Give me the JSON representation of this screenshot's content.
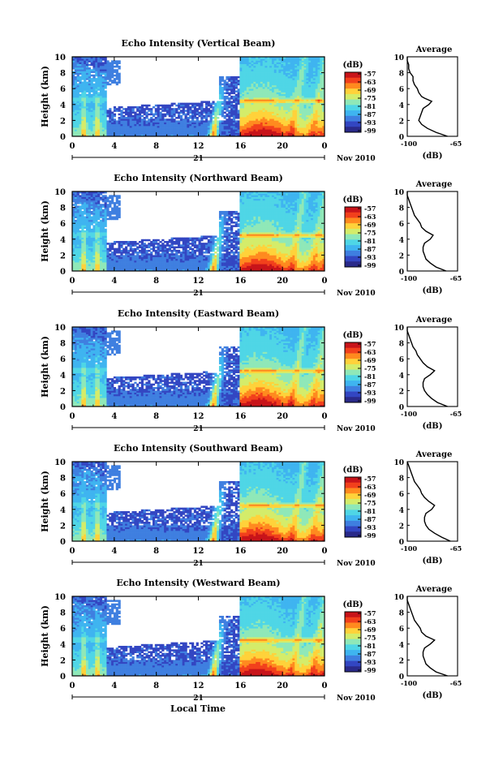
{
  "figure": {
    "date_label": "Nov 2010",
    "day_label": "21",
    "xlabel": "Local Time",
    "ylabel": "Height (km)",
    "avg_title": "Average",
    "avg_xlabel": "(dB)",
    "cb_unit": "(dB)"
  },
  "colors": {
    "scale": [
      "#2a2a8a",
      "#3346c2",
      "#3f7fe0",
      "#3fb4f0",
      "#4fd6e6",
      "#8fe8b8",
      "#d4ec6a",
      "#ffd23a",
      "#ff8a1f",
      "#f2401c",
      "#c8141a"
    ]
  },
  "chart_data": [
    {
      "type": "heatmap",
      "title": "Echo Intensity (Vertical Beam)",
      "x_ticks": [
        "0",
        "4",
        "8",
        "12",
        "16",
        "20",
        "0"
      ],
      "y_ticks": [
        "0",
        "2",
        "4",
        "6",
        "8",
        "10"
      ],
      "xlim": [
        0,
        24
      ],
      "ylim": [
        0,
        10
      ],
      "colorbar_ticks": [
        "-57",
        "-63",
        "-69",
        "-75",
        "-81",
        "-87",
        "-93",
        "-99"
      ],
      "avg_x_ticks": [
        "-100",
        "-65"
      ],
      "avg_y_ticks": [
        "0",
        "2",
        "4",
        "6",
        "8",
        "10"
      ],
      "avg_xlim": [
        -100,
        -65
      ],
      "avg_profile": [
        [
          -72,
          0
        ],
        [
          -80,
          0.5
        ],
        [
          -86,
          1
        ],
        [
          -90,
          1.5
        ],
        [
          -92,
          2
        ],
        [
          -91,
          2.5
        ],
        [
          -90,
          3
        ],
        [
          -89,
          3.5
        ],
        [
          -85,
          4
        ],
        [
          -83,
          4.4
        ],
        [
          -88,
          4.8
        ],
        [
          -90,
          5
        ],
        [
          -92,
          5.5
        ],
        [
          -93,
          6
        ],
        [
          -95,
          6.5
        ],
        [
          -96,
          7
        ],
        [
          -96,
          7.5
        ],
        [
          -98,
          8
        ],
        [
          -99,
          8.5
        ],
        [
          -99,
          9
        ],
        [
          -100,
          9.5
        ],
        [
          -100,
          10
        ]
      ]
    },
    {
      "type": "heatmap",
      "title": "Echo Intensity (Northward Beam)",
      "x_ticks": [
        "0",
        "4",
        "8",
        "12",
        "16",
        "20",
        "0"
      ],
      "y_ticks": [
        "0",
        "2",
        "4",
        "6",
        "8",
        "10"
      ],
      "xlim": [
        0,
        24
      ],
      "ylim": [
        0,
        10
      ],
      "colorbar_ticks": [
        "-57",
        "-63",
        "-69",
        "-75",
        "-81",
        "-87",
        "-93",
        "-99"
      ],
      "avg_x_ticks": [
        "-100",
        "-65"
      ],
      "avg_y_ticks": [
        "0",
        "2",
        "4",
        "6",
        "8",
        "10"
      ],
      "avg_xlim": [
        -100,
        -65
      ],
      "avg_profile": [
        [
          -73,
          0
        ],
        [
          -80,
          0.5
        ],
        [
          -84,
          1
        ],
        [
          -87,
          1.5
        ],
        [
          -88,
          2
        ],
        [
          -89,
          2.5
        ],
        [
          -89,
          3
        ],
        [
          -88,
          3.5
        ],
        [
          -84,
          4
        ],
        [
          -82,
          4.5
        ],
        [
          -87,
          5
        ],
        [
          -90,
          5.5
        ],
        [
          -91,
          6
        ],
        [
          -93,
          6.5
        ],
        [
          -95,
          7
        ],
        [
          -96,
          7.5
        ],
        [
          -97,
          8
        ],
        [
          -98,
          8.5
        ],
        [
          -99,
          9
        ],
        [
          -100,
          9.5
        ],
        [
          -100,
          10
        ]
      ]
    },
    {
      "type": "heatmap",
      "title": "Echo Intensity (Eastward Beam)",
      "x_ticks": [
        "0",
        "4",
        "8",
        "12",
        "16",
        "20",
        "0"
      ],
      "y_ticks": [
        "0",
        "2",
        "4",
        "6",
        "8",
        "10"
      ],
      "xlim": [
        0,
        24
      ],
      "ylim": [
        0,
        10
      ],
      "colorbar_ticks": [
        "-57",
        "-63",
        "-69",
        "-75",
        "-81",
        "-87",
        "-93",
        "-99"
      ],
      "avg_x_ticks": [
        "-100",
        "-65"
      ],
      "avg_y_ticks": [
        "0",
        "2",
        "4",
        "6",
        "8",
        "10"
      ],
      "avg_xlim": [
        -100,
        -65
      ],
      "avg_profile": [
        [
          -72,
          0
        ],
        [
          -79,
          0.5
        ],
        [
          -83,
          1
        ],
        [
          -86,
          1.5
        ],
        [
          -88,
          2
        ],
        [
          -89,
          2.5
        ],
        [
          -89,
          3
        ],
        [
          -88,
          3.5
        ],
        [
          -84,
          4
        ],
        [
          -81,
          4.5
        ],
        [
          -86,
          5
        ],
        [
          -89,
          5.5
        ],
        [
          -91,
          6
        ],
        [
          -93,
          6.5
        ],
        [
          -94,
          7
        ],
        [
          -96,
          7.5
        ],
        [
          -97,
          8
        ],
        [
          -98,
          8.5
        ],
        [
          -99,
          9
        ],
        [
          -100,
          9.5
        ],
        [
          -100,
          10
        ]
      ]
    },
    {
      "type": "heatmap",
      "title": "Echo Intensity (Southward Beam)",
      "x_ticks": [
        "0",
        "4",
        "8",
        "12",
        "16",
        "20",
        "0"
      ],
      "y_ticks": [
        "0",
        "2",
        "4",
        "6",
        "8",
        "10"
      ],
      "xlim": [
        0,
        24
      ],
      "ylim": [
        0,
        10
      ],
      "colorbar_ticks": [
        "-57",
        "-63",
        "-69",
        "-75",
        "-81",
        "-87",
        "-93",
        "-99"
      ],
      "avg_x_ticks": [
        "-100",
        "-65"
      ],
      "avg_y_ticks": [
        "0",
        "2",
        "4",
        "6",
        "8",
        "10"
      ],
      "avg_xlim": [
        -100,
        -65
      ],
      "avg_profile": [
        [
          -70,
          0
        ],
        [
          -76,
          0.5
        ],
        [
          -81,
          1
        ],
        [
          -85,
          1.5
        ],
        [
          -87,
          2
        ],
        [
          -88,
          2.5
        ],
        [
          -88,
          3
        ],
        [
          -87,
          3.5
        ],
        [
          -83,
          4
        ],
        [
          -81,
          4.5
        ],
        [
          -85,
          5
        ],
        [
          -88,
          5.5
        ],
        [
          -90,
          6
        ],
        [
          -91,
          6.5
        ],
        [
          -93,
          7
        ],
        [
          -95,
          7.5
        ],
        [
          -96,
          8
        ],
        [
          -97,
          8.5
        ],
        [
          -98,
          9
        ],
        [
          -99,
          9.5
        ],
        [
          -100,
          10
        ]
      ]
    },
    {
      "type": "heatmap",
      "title": "Echo Intensity (Westward Beam)",
      "x_ticks": [
        "0",
        "4",
        "8",
        "12",
        "16",
        "20",
        "0"
      ],
      "y_ticks": [
        "0",
        "2",
        "4",
        "6",
        "8",
        "10"
      ],
      "xlim": [
        0,
        24
      ],
      "ylim": [
        0,
        10
      ],
      "colorbar_ticks": [
        "-57",
        "-63",
        "-69",
        "-75",
        "-81",
        "-87",
        "-93",
        "-99"
      ],
      "avg_x_ticks": [
        "-100",
        "-65"
      ],
      "avg_y_ticks": [
        "0",
        "2",
        "4",
        "6",
        "8",
        "10"
      ],
      "avg_xlim": [
        -100,
        -65
      ],
      "avg_profile": [
        [
          -72,
          0
        ],
        [
          -80,
          0.5
        ],
        [
          -84,
          1
        ],
        [
          -87,
          1.5
        ],
        [
          -88,
          2
        ],
        [
          -89,
          2.5
        ],
        [
          -89,
          3
        ],
        [
          -88,
          3.5
        ],
        [
          -84,
          4
        ],
        [
          -81,
          4.5
        ],
        [
          -87,
          5
        ],
        [
          -90,
          5.5
        ],
        [
          -91,
          6
        ],
        [
          -93,
          6.5
        ],
        [
          -95,
          7
        ],
        [
          -96,
          7.5
        ],
        [
          -97,
          8
        ],
        [
          -98,
          8.5
        ],
        [
          -99,
          9
        ],
        [
          -100,
          9.5
        ],
        [
          -100,
          10
        ]
      ]
    }
  ]
}
